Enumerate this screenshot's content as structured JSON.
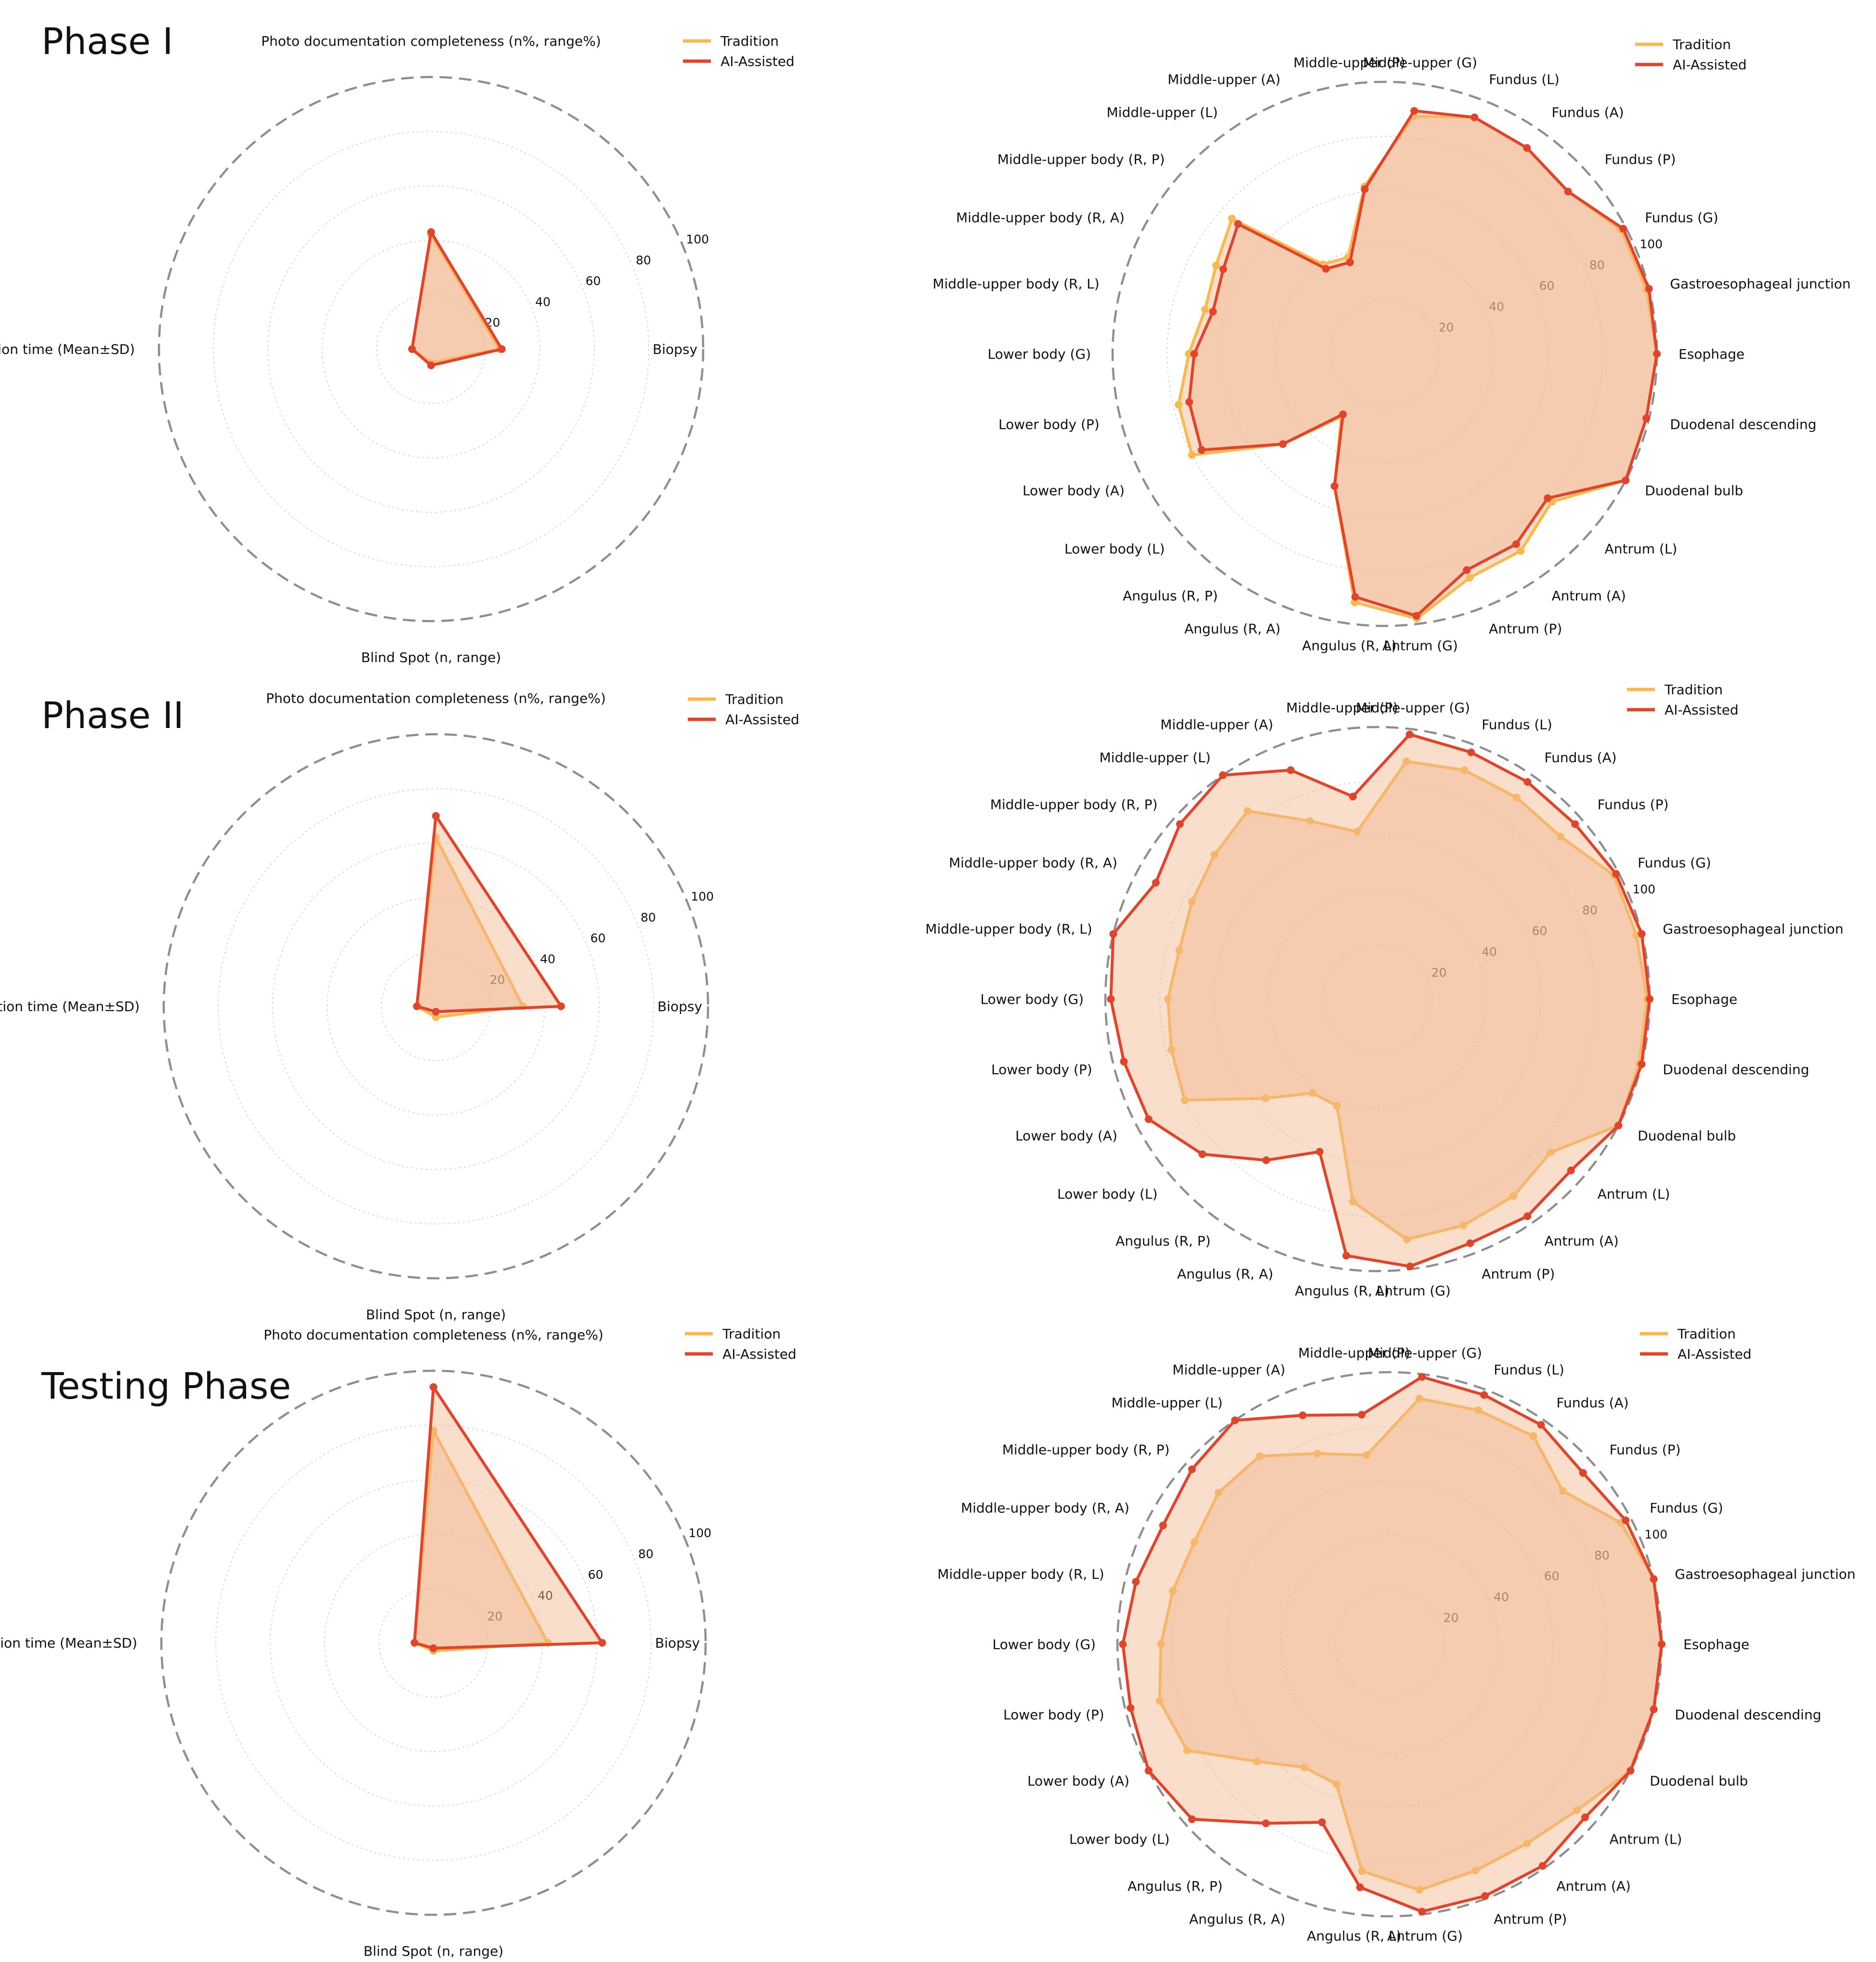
{
  "colors": {
    "tradition": "#F9B94E",
    "ai": "#E0442B",
    "fill": "#F2B58F",
    "ring": "#8E8E8E",
    "grid": "#D6D6D6"
  },
  "legend": {
    "tradition": "Tradition",
    "ai": "AI-Assisted"
  },
  "rows": [
    {
      "title": "Phase I"
    },
    {
      "title": "Phase II"
    },
    {
      "title": "Testing Phase"
    }
  ],
  "chart_data": [
    {
      "type": "radar",
      "panel": "Phase I - overview",
      "categories": [
        "Photo documentation completeness (n%, range%)",
        "Inspection time (Mean±SD)",
        "Blind Spot (n, range)",
        "Biopsy"
      ],
      "rlim": [
        0,
        100
      ],
      "rticks": [
        "20",
        "40",
        "60",
        "80",
        "100"
      ],
      "series": [
        {
          "name": "Tradition",
          "values": [
            42,
            7,
            5,
            25
          ]
        },
        {
          "name": "AI-Assisted",
          "values": [
            43,
            7,
            6,
            26
          ]
        }
      ]
    },
    {
      "type": "radar",
      "panel": "Phase I - sites",
      "categories": [
        "Esophage",
        "Gastroesophageal junction",
        "Fundus (G)",
        "Fundus (P)",
        "Fundus (A)",
        "Fundus (L)",
        "Middle-upper (G)",
        "Middle-upper (P)",
        "Middle-upper (A)",
        "Middle-upper (L)",
        "Middle-upper body (R, P)",
        "Middle-upper body (R, A)",
        "Middle-upper body (R, L)",
        "Lower body (G)",
        "Lower body (P)",
        "Lower body (A)",
        "Lower body (L)",
        "Angulus (R, P)",
        "Angulus (R, A)",
        "Angulus (R, L)",
        "Antrum (G)",
        "Antrum (P)",
        "Antrum (A)",
        "Antrum (L)",
        "Duodenal bulb",
        "Duodenal descending"
      ],
      "rlim": [
        0,
        100
      ],
      "rticks": [
        "20",
        "40",
        "60",
        "80",
        "100"
      ],
      "series": [
        {
          "name": "Tradition",
          "values": [
            100,
            99,
            98,
            90,
            92,
            93,
            88,
            62,
            38,
            40,
            75,
            70,
            68,
            72,
            78,
            80,
            50,
            28,
            52,
            92,
            98,
            88,
            88,
            82,
            100,
            99
          ]
        },
        {
          "name": "AI-Assisted",
          "values": [
            100,
            100,
            99,
            90,
            92,
            93,
            90,
            61,
            36,
            38,
            72,
            67,
            65,
            70,
            74,
            76,
            50,
            27,
            52,
            90,
            97,
            85,
            85,
            80,
            100,
            99
          ]
        }
      ]
    },
    {
      "type": "radar",
      "panel": "Phase II - overview",
      "categories": [
        "Photo documentation completeness (n%, range%)",
        "Inspection time (Mean±SD)",
        "Blind Spot (n, range)",
        "Biopsy"
      ],
      "rlim": [
        0,
        100
      ],
      "rticks": [
        "20",
        "40",
        "60",
        "80",
        "100"
      ],
      "series": [
        {
          "name": "Tradition",
          "values": [
            62,
            7,
            4,
            32
          ]
        },
        {
          "name": "AI-Assisted",
          "values": [
            70,
            7,
            2,
            46
          ]
        }
      ]
    },
    {
      "type": "radar",
      "panel": "Phase II - sites",
      "categories": [
        "Esophage",
        "Gastroesophageal junction",
        "Fundus (G)",
        "Fundus (P)",
        "Fundus (A)",
        "Fundus (L)",
        "Middle-upper (G)",
        "Middle-upper (P)",
        "Middle-upper (A)",
        "Middle-upper (L)",
        "Middle-upper body (R, P)",
        "Middle-upper body (R, A)",
        "Middle-upper body (R, L)",
        "Lower body (G)",
        "Lower body (P)",
        "Lower body (A)",
        "Lower body (L)",
        "Angulus (R, P)",
        "Angulus (R, A)",
        "Angulus (R, L)",
        "Antrum (G)",
        "Antrum (P)",
        "Antrum (A)",
        "Antrum (L)",
        "Duodenal bulb",
        "Duodenal descending"
      ],
      "rlim": [
        0,
        100
      ],
      "rticks": [
        "20",
        "40",
        "60",
        "80",
        "100"
      ],
      "series": [
        {
          "name": "Tradition",
          "values": [
            99,
            98,
            98,
            90,
            90,
            90,
            88,
            62,
            70,
            84,
            80,
            77,
            75,
            77,
            78,
            80,
            55,
            42,
            42,
            75,
            89,
            89,
            88,
            85,
            100,
            99
          ]
        },
        {
          "name": "AI-Assisted",
          "values": [
            100,
            100,
            99,
            97,
            97,
            97,
            98,
            75,
            90,
            100,
            97,
            92,
            100,
            98,
            96,
            95,
            86,
            72,
            60,
            95,
            99,
            96,
            97,
            95,
            100,
            100
          ]
        }
      ]
    },
    {
      "type": "radar",
      "panel": "Testing Phase - overview",
      "categories": [
        "Photo documentation completeness (n%, range%)",
        "Inspection time (Mean±SD)",
        "Blind Spot (n, range)",
        "Biopsy"
      ],
      "rlim": [
        0,
        100
      ],
      "rticks": [
        "20",
        "40",
        "60",
        "80",
        "100"
      ],
      "series": [
        {
          "name": "Tradition",
          "values": [
            78,
            7,
            3,
            42
          ]
        },
        {
          "name": "AI-Assisted",
          "values": [
            94,
            7,
            2,
            62
          ]
        }
      ]
    },
    {
      "type": "radar",
      "panel": "Testing Phase - sites",
      "categories": [
        "Esophage",
        "Gastroesophageal junction",
        "Fundus (G)",
        "Fundus (P)",
        "Fundus (A)",
        "Fundus (L)",
        "Middle-upper (G)",
        "Middle-upper (P)",
        "Middle-upper (A)",
        "Middle-upper (L)",
        "Middle-upper body (R, P)",
        "Middle-upper body (R, A)",
        "Middle-upper body (R, L)",
        "Lower body (G)",
        "Lower body (P)",
        "Lower body (A)",
        "Lower body (L)",
        "Angulus (R, P)",
        "Angulus (R, A)",
        "Angulus (R, L)",
        "Antrum (G)",
        "Antrum (P)",
        "Antrum (A)",
        "Antrum (L)",
        "Duodenal bulb",
        "Duodenal descending"
      ],
      "rlim": [
        0,
        100
      ],
      "rticks": [
        "20",
        "40",
        "60",
        "80",
        "100"
      ],
      "series": [
        {
          "name": "Tradition",
          "values": [
            100,
            100,
            96,
            85,
            93,
            92,
            91,
            70,
            75,
            84,
            84,
            81,
            82,
            84,
            87,
            84,
            65,
            55,
            55,
            84,
            91,
            89,
            89,
            92,
            100,
            100
          ]
        },
        {
          "name": "AI-Assisted",
          "values": [
            100,
            100,
            98,
            95,
            98,
            98,
            99,
            85,
            90,
            100,
            97,
            94,
            96,
            98,
            98,
            100,
            97,
            80,
            70,
            90,
            99,
            99,
            99,
            96,
            100,
            100
          ]
        }
      ]
    }
  ]
}
